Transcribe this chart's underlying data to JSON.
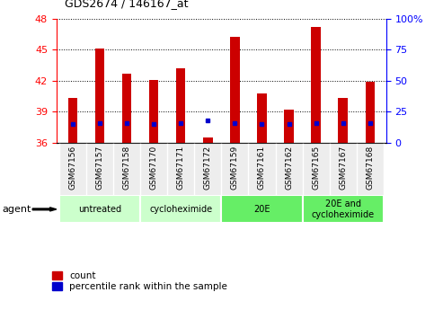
{
  "title": "GDS2674 / 146167_at",
  "samples": [
    "GSM67156",
    "GSM67157",
    "GSM67158",
    "GSM67170",
    "GSM67171",
    "GSM67172",
    "GSM67159",
    "GSM67161",
    "GSM67162",
    "GSM67165",
    "GSM67167",
    "GSM67168"
  ],
  "count_values": [
    40.3,
    45.1,
    42.7,
    42.1,
    43.2,
    36.5,
    46.2,
    40.8,
    39.2,
    47.2,
    40.3,
    41.9
  ],
  "percentile_values": [
    15,
    16,
    16,
    15,
    16,
    18,
    16,
    15,
    15,
    16,
    16,
    16
  ],
  "ylim_left": [
    36,
    48
  ],
  "ylim_right": [
    0,
    100
  ],
  "yticks_left": [
    36,
    39,
    42,
    45,
    48
  ],
  "yticks_right": [
    0,
    25,
    50,
    75,
    100
  ],
  "ytick_labels_right": [
    "0",
    "25",
    "50",
    "75",
    "100%"
  ],
  "bar_color": "#cc0000",
  "percentile_color": "#0000cc",
  "groups": [
    {
      "label": "untreated",
      "start": 0,
      "end": 3,
      "color": "#ccffcc"
    },
    {
      "label": "cycloheximide",
      "start": 3,
      "end": 6,
      "color": "#ccffcc"
    },
    {
      "label": "20E",
      "start": 6,
      "end": 9,
      "color": "#66ee66"
    },
    {
      "label": "20E and\ncycloheximide",
      "start": 9,
      "end": 12,
      "color": "#66ee66"
    }
  ],
  "agent_label": "agent",
  "legend_count_label": "count",
  "legend_percentile_label": "percentile rank within the sample",
  "bar_width": 0.35,
  "base_value": 36,
  "left_axis_color": "red",
  "right_axis_color": "blue",
  "bg_color": "#f0f0f0"
}
